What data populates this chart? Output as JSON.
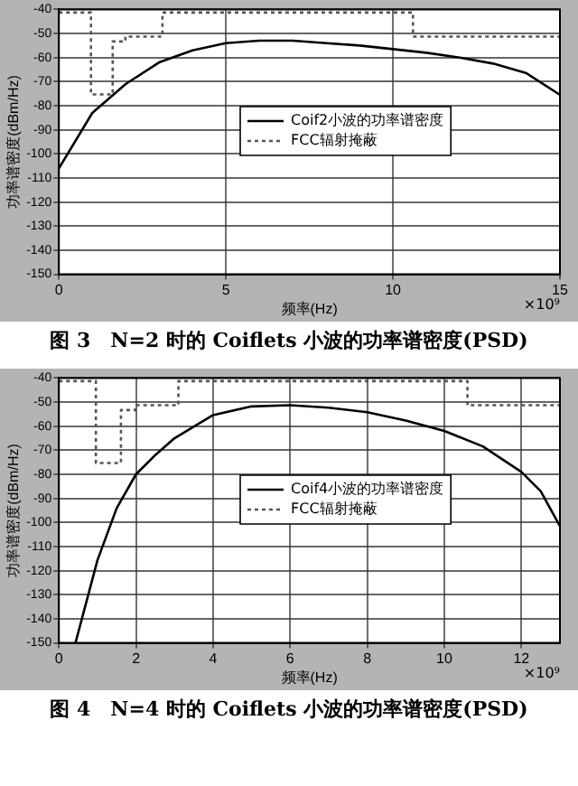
{
  "chart_data": [
    {
      "type": "line",
      "title": "图 3　N=2 时的 Coiflets 小波的功率谱密度(PSD)",
      "xlabel": "频率(Hz)",
      "ylabel": "功率谱密度(dBm/Hz)",
      "annotations": [
        "×10⁹"
      ],
      "xlim": [
        0,
        15
      ],
      "xticks": [
        0,
        5,
        10,
        15
      ],
      "ylim": [
        -150,
        -40
      ],
      "yticks": [
        -150,
        -140,
        -130,
        -120,
        -110,
        -100,
        -90,
        -80,
        -70,
        -60,
        -50,
        -40
      ],
      "grid": true,
      "legend": "center",
      "series": [
        {
          "name": "Coif2小波的功率谱密度",
          "color": "#000000",
          "line_style": "solid",
          "x": [
            0,
            1,
            2,
            3,
            4,
            5,
            6,
            7,
            8,
            9,
            10,
            11,
            12,
            13,
            14,
            15
          ],
          "values": [
            -106,
            -83,
            -71,
            -62,
            -57,
            -54,
            -53,
            -53,
            -54,
            -55,
            -56.5,
            -58,
            -60,
            -62.5,
            -66.5,
            -75.5
          ]
        },
        {
          "name": "FCC辐射掩蔽",
          "type": "step",
          "color": "#555555",
          "line_style": "dotted",
          "x": [
            0,
            0.96,
            1.61,
            1.99,
            3.1,
            10.6,
            15
          ],
          "values": [
            -41.3,
            -75.3,
            -53.3,
            -51.3,
            -41.3,
            -51.3,
            -51.3
          ]
        }
      ]
    },
    {
      "type": "line",
      "title": "图 4　N=4 时的 Coiflets 小波的功率谱密度(PSD)",
      "xlabel": "频率(Hz)",
      "ylabel": "功率谱密度(dBm/Hz)",
      "annotations": [
        "×10⁹"
      ],
      "xlim": [
        0,
        13
      ],
      "xticks": [
        0,
        2,
        4,
        6,
        8,
        10,
        12
      ],
      "ylim": [
        -150,
        -40
      ],
      "yticks": [
        -150,
        -140,
        -130,
        -120,
        -110,
        -100,
        -90,
        -80,
        -70,
        -60,
        -50,
        -40
      ],
      "grid": true,
      "legend": "center",
      "series": [
        {
          "name": "Coif4小波的功率谱密度",
          "color": "#000000",
          "line_style": "solid",
          "x": [
            0.43,
            1,
            1.5,
            2,
            2.5,
            3,
            4,
            5,
            6,
            7,
            8,
            9,
            10,
            11,
            12,
            12.5,
            13
          ],
          "values": [
            -150,
            -115.7,
            -94,
            -80,
            -72,
            -65,
            -55.4,
            -51.8,
            -51.3,
            -52.3,
            -54.2,
            -57.7,
            -62,
            -68.4,
            -79,
            -87,
            -101.5
          ]
        },
        {
          "name": "FCC辐射掩蔽",
          "type": "step",
          "color": "#555555",
          "line_style": "dotted",
          "x": [
            0,
            0.96,
            1.61,
            1.99,
            3.1,
            10.6,
            13
          ],
          "values": [
            -41.3,
            -75.3,
            -53.3,
            -51.3,
            -41.3,
            -51.3,
            -51.3
          ]
        }
      ]
    }
  ]
}
